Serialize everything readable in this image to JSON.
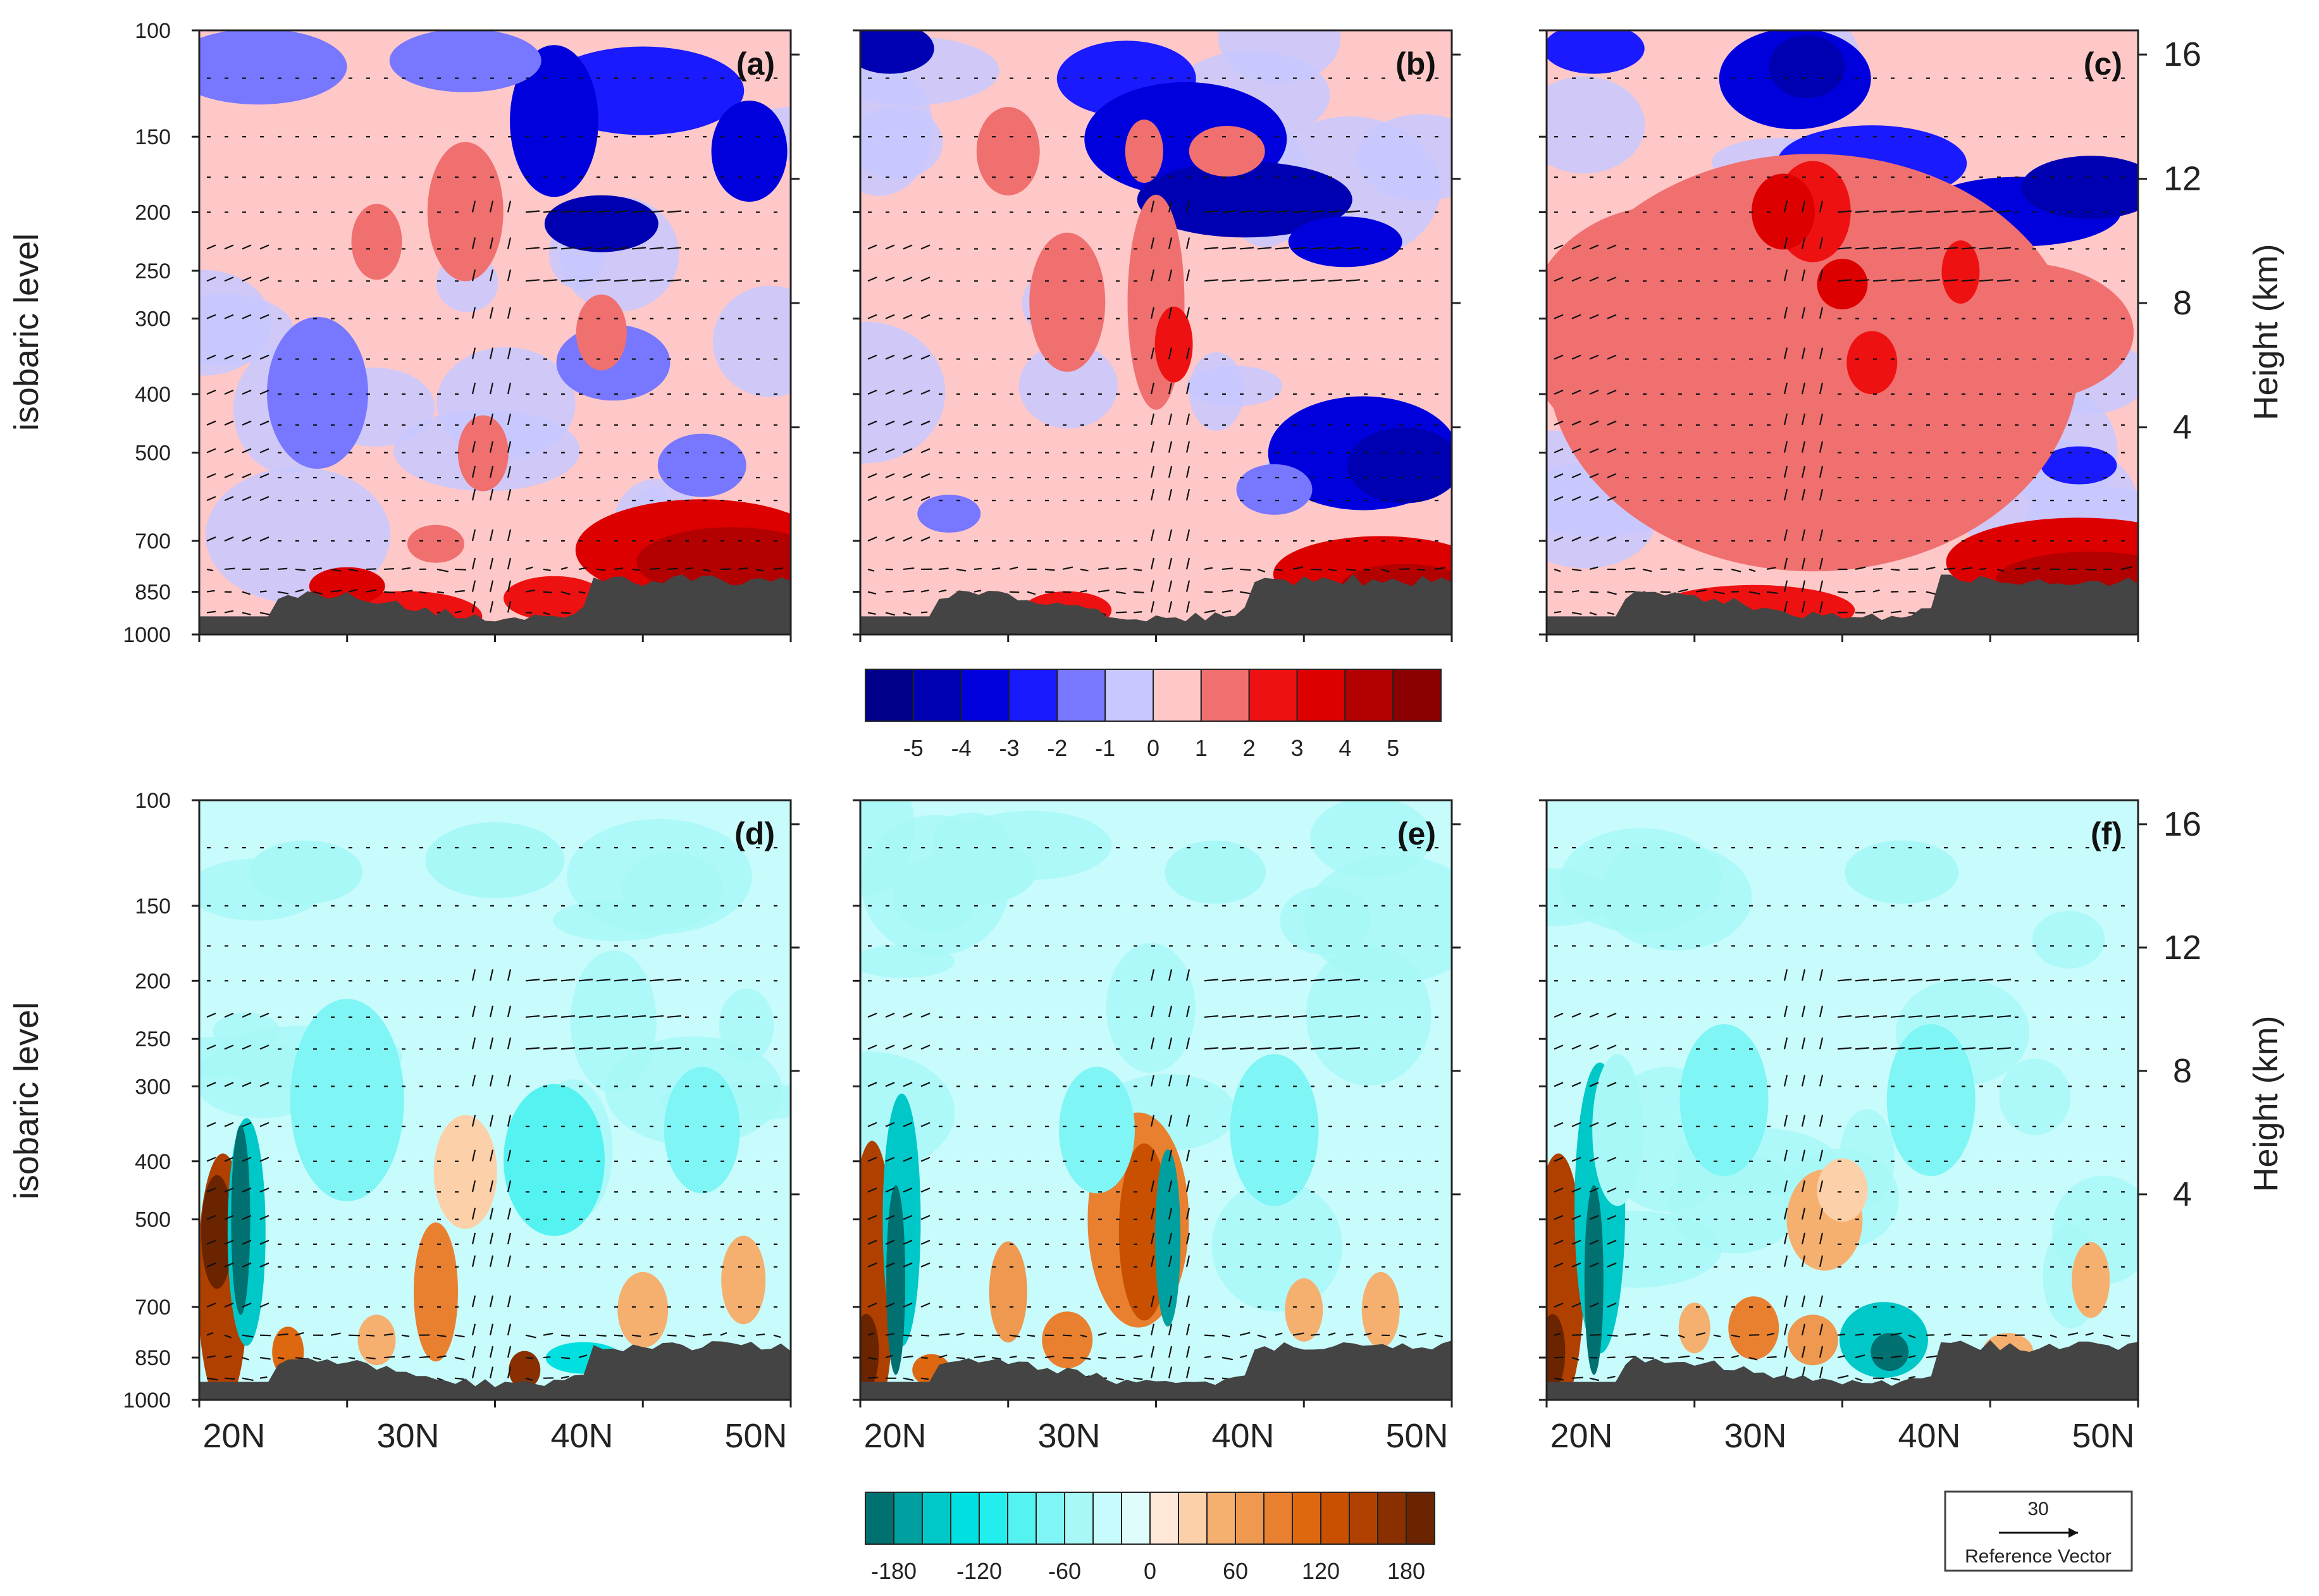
{
  "chart_data": {
    "type": "heatmap",
    "description_free": true,
    "y_axis_left": {
      "label": "isobaric level",
      "ticks": [
        "100",
        "150",
        "200",
        "250",
        "300",
        "400",
        "500",
        "700",
        "850",
        "1000"
      ],
      "tick_values": [
        100,
        150,
        200,
        250,
        300,
        400,
        500,
        700,
        850,
        1000
      ]
    },
    "y_axis_right": {
      "label": "Height (km)",
      "ticks": [
        "16",
        "12",
        "8",
        "4"
      ],
      "tick_values": [
        16,
        12,
        8,
        4
      ]
    },
    "x_axis": {
      "ticks": [
        "20N",
        "30N",
        "40N",
        "50N"
      ],
      "tick_values": [
        20,
        30,
        40,
        50
      ],
      "range": [
        18,
        52
      ]
    },
    "panels": [
      {
        "label": "(a)",
        "row": "top",
        "jet_lat": 34.5
      },
      {
        "label": "(b)",
        "row": "top",
        "jet_lat": 35.5
      },
      {
        "label": "(c)",
        "row": "top",
        "jet_lat": 33.0
      },
      {
        "label": "(d)",
        "row": "bottom",
        "jet_lat": 34.5
      },
      {
        "label": "(e)",
        "row": "bottom",
        "jet_lat": 35.5
      },
      {
        "label": "(f)",
        "row": "bottom",
        "jet_lat": 33.0
      }
    ],
    "colorbar_top": {
      "labels": [
        "-5",
        "-4",
        "-3",
        "-2",
        "-1",
        "0",
        "1",
        "2",
        "3",
        "4",
        "5"
      ],
      "colors": [
        "#00008b",
        "#0000b3",
        "#0000dd",
        "#1a1aff",
        "#7777ff",
        "#c8c8ff",
        "#ffc8c8",
        "#f07070",
        "#ee1111",
        "#dd0000",
        "#b30000",
        "#8b0000"
      ]
    },
    "colorbar_bottom": {
      "labels": [
        "-180",
        "-120",
        "-60",
        "0",
        "60",
        "120",
        "180"
      ],
      "colors": [
        "#007070",
        "#00a0a0",
        "#00c8c8",
        "#00e0e0",
        "#22eeee",
        "#55f2f2",
        "#80f5f5",
        "#a8f8f8",
        "#c8fbfb",
        "#e0fdfd",
        "#ffe8d8",
        "#fcd0a8",
        "#f5b070",
        "#ee9850",
        "#e88030",
        "#dd6810",
        "#c85000",
        "#b04000",
        "#8a3000",
        "#6a2400"
      ]
    },
    "reference_vector": {
      "value": "30",
      "label": "Reference Vector"
    }
  }
}
